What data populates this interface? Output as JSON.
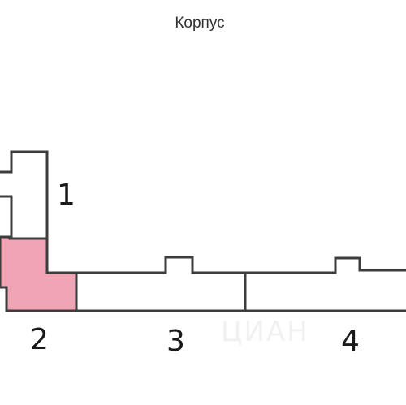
{
  "header": {
    "title": "Корпус"
  },
  "plan": {
    "sections": [
      {
        "label": "1",
        "highlighted": false
      },
      {
        "label": "2",
        "highlighted": true
      },
      {
        "label": "3",
        "highlighted": false
      },
      {
        "label": "4",
        "highlighted": false
      }
    ],
    "watermark": "ЦИАН",
    "colors": {
      "outline": "#3d3d3d",
      "highlight": "#f0a4b4",
      "background": "#ffffff"
    }
  }
}
